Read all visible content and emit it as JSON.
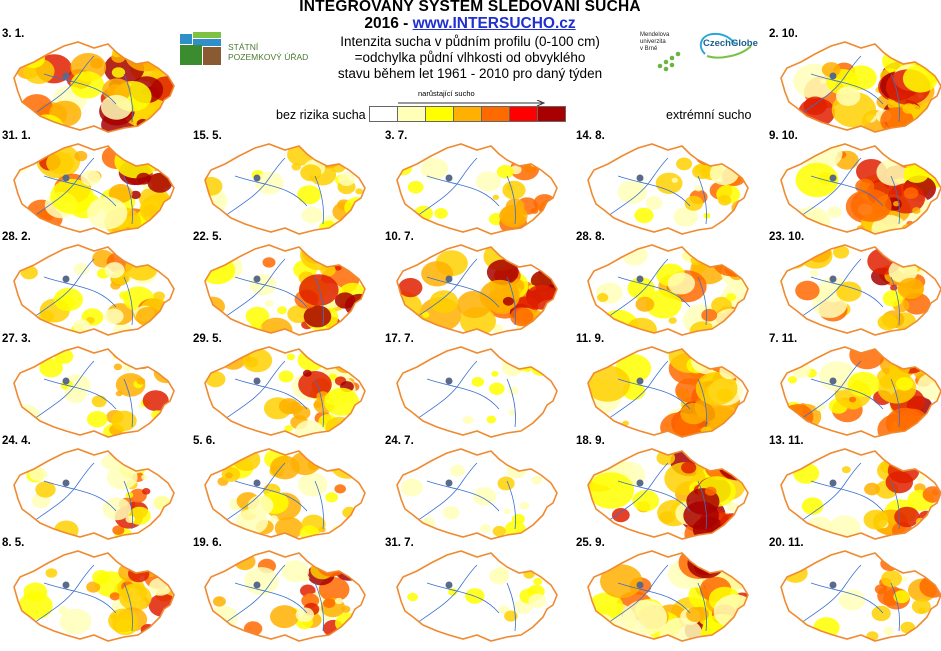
{
  "header": {
    "title_line1": "INTEGROVANÝ SYSTÉM SLEDOVÁNÍ SUCHA",
    "title_year": "2016 - ",
    "title_url": "www.INTERSUCHO.cz",
    "desc_line1": "Intenzita sucha v půdním profilu (0-100 cm)",
    "desc_line2": "=odchylka půdní vlhkosti od obvyklého",
    "desc_line3": "stavu během let 1961 - 2010 pro daný týden"
  },
  "legend": {
    "low_label": "bez rizika sucha",
    "high_label": "extrémní sucho",
    "arrow_label": "narůstající sucho",
    "colors": [
      "#ffffff",
      "#ffffb8",
      "#ffff00",
      "#ffb000",
      "#ff6a00",
      "#ff0000",
      "#a80000"
    ]
  },
  "logos": {
    "spu_line1": "STÁTNÍ",
    "spu_line2": "POZEMKOVÝ ÚŘAD",
    "mendel_line1": "Mendelova",
    "mendel_line2": "univerzita",
    "mendel_line3": "v Brně",
    "czechglobe": "CzechGlobe"
  },
  "maps": [
    {
      "date": "3. 1.",
      "intensity": 1
    },
    {
      "date": "31. 1.",
      "intensity": 1
    },
    {
      "date": "28. 2.",
      "intensity": 0.6
    },
    {
      "date": "27. 3.",
      "intensity": 0.5
    },
    {
      "date": "24. 4.",
      "intensity": 0.5
    },
    {
      "date": "8. 5.",
      "intensity": 0.6
    },
    {
      "date": "15. 5.",
      "intensity": 0.4
    },
    {
      "date": "22. 5.",
      "intensity": 0.8
    },
    {
      "date": "29. 5.",
      "intensity": 0.7
    },
    {
      "date": "5. 6.",
      "intensity": 0.6
    },
    {
      "date": "19. 6.",
      "intensity": 0.7
    },
    {
      "date": "3. 7.",
      "intensity": 0.4
    },
    {
      "date": "10. 7.",
      "intensity": 0.9
    },
    {
      "date": "17. 7.",
      "intensity": 0.1
    },
    {
      "date": "24. 7.",
      "intensity": 0.2
    },
    {
      "date": "31. 7.",
      "intensity": 0.1
    },
    {
      "date": "14. 8.",
      "intensity": 0.4
    },
    {
      "date": "28. 8.",
      "intensity": 0.8
    },
    {
      "date": "11. 9.",
      "intensity": 1
    },
    {
      "date": "18. 9.",
      "intensity": 1
    },
    {
      "date": "25. 9.",
      "intensity": 1
    },
    {
      "date": "2. 10.",
      "intensity": 1
    },
    {
      "date": "9. 10.",
      "intensity": 0.9
    },
    {
      "date": "23. 10.",
      "intensity": 0.7
    },
    {
      "date": "7. 11.",
      "intensity": 0.8
    },
    {
      "date": "13. 11.",
      "intensity": 0.6
    },
    {
      "date": "20. 11.",
      "intensity": 0.4
    }
  ]
}
